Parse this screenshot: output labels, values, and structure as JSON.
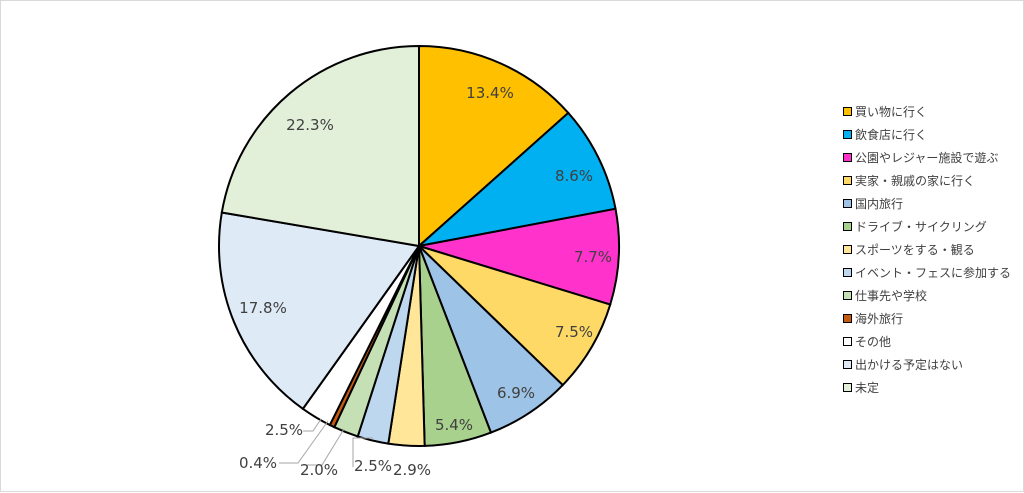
{
  "chart_data": {
    "type": "pie",
    "title": "",
    "categories": [
      "買い物に行く",
      "飲食店に行く",
      "公園やレジャー施設で遊ぶ",
      "実家・親戚の家に行く",
      "国内旅行",
      "ドライブ・サイクリング",
      "スポーツをする・観る",
      "イベント・フェスに参加する",
      "仕事先や学校",
      "海外旅行",
      "その他",
      "出かける予定はない",
      "未定"
    ],
    "values": [
      13.4,
      8.6,
      7.7,
      7.5,
      6.9,
      5.4,
      2.9,
      2.5,
      2.0,
      0.4,
      2.5,
      17.8,
      22.3
    ],
    "labels": [
      "13.4%",
      "8.6%",
      "7.7%",
      "7.5%",
      "6.9%",
      "5.4%",
      "2.9%",
      "2.5%",
      "2.0%",
      "0.4%",
      "2.5%",
      "17.8%",
      "22.3%"
    ],
    "colors": [
      "#FFC000",
      "#00B0F0",
      "#FF33CC",
      "#FFD966",
      "#9DC3E6",
      "#A9D18E",
      "#FFE699",
      "#BDD7EE",
      "#C5E0B4",
      "#C55A11",
      "#FFFFFF",
      "#DEEBF7",
      "#E2F0D9"
    ],
    "legend_position": "right"
  }
}
